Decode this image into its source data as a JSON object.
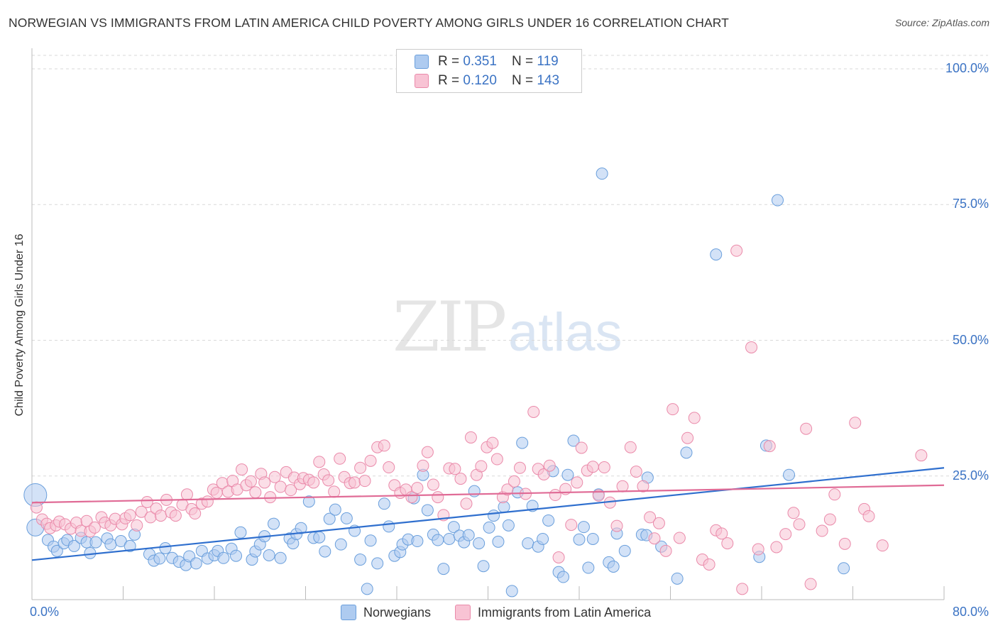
{
  "header": {
    "title": "NORWEGIAN VS IMMIGRANTS FROM LATIN AMERICA CHILD POVERTY AMONG GIRLS UNDER 16 CORRELATION CHART",
    "source": "Source: ZipAtlas.com"
  },
  "watermark": {
    "zip": "ZIP",
    "atlas": "atlas"
  },
  "legend_top": {
    "rows": [
      {
        "r_label": "R = ",
        "r_value": "0.351",
        "n_label": "N = ",
        "n_value": "119"
      },
      {
        "r_label": "R = ",
        "r_value": "0.120",
        "n_label": "N = ",
        "n_value": "143"
      }
    ]
  },
  "legend_bottom": {
    "items": [
      "Norwegians",
      "Immigrants from Latin America"
    ]
  },
  "colors": {
    "blue_fill": "#aecbf0",
    "blue_stroke": "#6a9fdc",
    "blue_line": "#2f6fce",
    "pink_fill": "#f8c3d4",
    "pink_stroke": "#ea8aaa",
    "pink_line": "#e06b96",
    "tick_color": "#3b73c4",
    "grid": "#d9d9d9"
  },
  "chart_data": {
    "type": "scatter",
    "title": "NORWEGIAN VS IMMIGRANTS FROM LATIN AMERICA CHILD POVERTY AMONG GIRLS UNDER 16 CORRELATION CHART",
    "xlabel": "",
    "ylabel": "Child Poverty Among Girls Under 16",
    "xlim": [
      0,
      80
    ],
    "ylim": [
      0,
      100
    ],
    "x_tick_labels": [
      "0.0%",
      "80.0%"
    ],
    "y_ticks": [
      25,
      50,
      75,
      100
    ],
    "y_tick_labels": [
      "25.0%",
      "50.0%",
      "75.0%",
      "100.0%"
    ],
    "grid": "horizontal dashed",
    "legend_position": "top-center",
    "series": [
      {
        "name": "Norwegians",
        "R": 0.351,
        "N": 119,
        "trend": [
          [
            0,
            9.5
          ],
          [
            80,
            26.5
          ]
        ],
        "points": [
          [
            0.3,
            21.5
          ],
          [
            0.3,
            15.5
          ],
          [
            1.4,
            13.2
          ],
          [
            1.9,
            12.0
          ],
          [
            2.2,
            11.2
          ],
          [
            2.8,
            12.6
          ],
          [
            3.1,
            13.2
          ],
          [
            3.7,
            12.1
          ],
          [
            4.3,
            13.6
          ],
          [
            4.8,
            12.8
          ],
          [
            5.1,
            10.8
          ],
          [
            5.6,
            12.8
          ],
          [
            6.6,
            13.5
          ],
          [
            6.9,
            12.4
          ],
          [
            7.8,
            13.0
          ],
          [
            8.6,
            12.1
          ],
          [
            9.0,
            14.2
          ],
          [
            10.3,
            10.6
          ],
          [
            10.7,
            9.4
          ],
          [
            11.2,
            9.8
          ],
          [
            11.7,
            11.7
          ],
          [
            12.3,
            9.9
          ],
          [
            12.9,
            9.2
          ],
          [
            13.5,
            8.6
          ],
          [
            13.8,
            10.2
          ],
          [
            14.4,
            8.9
          ],
          [
            14.9,
            11.2
          ],
          [
            15.4,
            9.8
          ],
          [
            16.0,
            10.4
          ],
          [
            16.3,
            11.2
          ],
          [
            16.8,
            9.9
          ],
          [
            17.5,
            11.6
          ],
          [
            17.9,
            10.3
          ],
          [
            18.3,
            14.6
          ],
          [
            19.3,
            9.6
          ],
          [
            19.6,
            11.1
          ],
          [
            20.0,
            12.4
          ],
          [
            20.4,
            13.9
          ],
          [
            20.8,
            10.4
          ],
          [
            21.2,
            16.2
          ],
          [
            21.8,
            9.9
          ],
          [
            22.6,
            13.5
          ],
          [
            22.9,
            12.6
          ],
          [
            23.2,
            14.3
          ],
          [
            23.6,
            15.4
          ],
          [
            24.3,
            20.3
          ],
          [
            24.7,
            13.6
          ],
          [
            25.2,
            13.7
          ],
          [
            25.7,
            11.1
          ],
          [
            26.1,
            17.1
          ],
          [
            26.6,
            18.8
          ],
          [
            27.1,
            12.4
          ],
          [
            27.6,
            17.2
          ],
          [
            28.3,
            14.9
          ],
          [
            28.8,
            9.6
          ],
          [
            29.4,
            4.2
          ],
          [
            29.7,
            13.1
          ],
          [
            30.3,
            8.9
          ],
          [
            30.9,
            19.9
          ],
          [
            31.3,
            15.7
          ],
          [
            31.8,
            10.3
          ],
          [
            32.3,
            11.0
          ],
          [
            32.5,
            12.4
          ],
          [
            33.0,
            13.3
          ],
          [
            33.5,
            20.9
          ],
          [
            33.8,
            13.0
          ],
          [
            34.3,
            25.2
          ],
          [
            34.7,
            18.7
          ],
          [
            35.2,
            14.2
          ],
          [
            35.6,
            13.2
          ],
          [
            36.1,
            7.9
          ],
          [
            36.6,
            13.4
          ],
          [
            37.0,
            15.6
          ],
          [
            37.5,
            14.0
          ],
          [
            37.9,
            12.8
          ],
          [
            38.3,
            14.1
          ],
          [
            38.8,
            22.2
          ],
          [
            39.2,
            12.6
          ],
          [
            39.6,
            8.4
          ],
          [
            40.1,
            15.5
          ],
          [
            40.5,
            17.7
          ],
          [
            40.9,
            12.9
          ],
          [
            41.4,
            19.3
          ],
          [
            41.8,
            15.9
          ],
          [
            42.1,
            3.8
          ],
          [
            42.6,
            22.0
          ],
          [
            43.0,
            31.1
          ],
          [
            43.5,
            12.6
          ],
          [
            43.9,
            19.5
          ],
          [
            44.4,
            12.0
          ],
          [
            44.8,
            13.4
          ],
          [
            45.3,
            16.8
          ],
          [
            45.7,
            25.9
          ],
          [
            46.2,
            7.3
          ],
          [
            46.6,
            6.4
          ],
          [
            47.0,
            25.2
          ],
          [
            47.5,
            31.5
          ],
          [
            48.0,
            13.3
          ],
          [
            48.4,
            15.6
          ],
          [
            48.8,
            8.1
          ],
          [
            49.2,
            13.4
          ],
          [
            49.7,
            21.6
          ],
          [
            50.0,
            80.7
          ],
          [
            50.6,
            9.1
          ],
          [
            51.0,
            8.3
          ],
          [
            51.3,
            14.4
          ],
          [
            52.0,
            11.2
          ],
          [
            53.5,
            14.2
          ],
          [
            54.0,
            24.7
          ],
          [
            56.6,
            6.1
          ],
          [
            57.4,
            29.3
          ],
          [
            60.0,
            65.8
          ],
          [
            63.8,
            10.1
          ],
          [
            64.4,
            30.6
          ],
          [
            65.4,
            75.8
          ],
          [
            66.4,
            25.2
          ],
          [
            71.2,
            8.0
          ],
          [
            53.9,
            14.1
          ],
          [
            55.2,
            12.0
          ]
        ]
      },
      {
        "name": "Immigrants from Latin America",
        "R": 0.12,
        "N": 143,
        "trend": [
          [
            0,
            20.1
          ],
          [
            80,
            23.3
          ]
        ],
        "points": [
          [
            0.4,
            19.2
          ],
          [
            0.9,
            17.0
          ],
          [
            1.3,
            16.2
          ],
          [
            1.6,
            15.4
          ],
          [
            2.1,
            15.9
          ],
          [
            2.4,
            16.6
          ],
          [
            2.9,
            16.1
          ],
          [
            3.4,
            15.3
          ],
          [
            3.9,
            16.4
          ],
          [
            4.3,
            14.9
          ],
          [
            4.8,
            16.7
          ],
          [
            5.1,
            14.8
          ],
          [
            5.5,
            15.5
          ],
          [
            6.1,
            17.4
          ],
          [
            6.4,
            16.4
          ],
          [
            6.9,
            15.9
          ],
          [
            7.3,
            17.1
          ],
          [
            7.9,
            16.1
          ],
          [
            8.2,
            17.2
          ],
          [
            8.6,
            17.8
          ],
          [
            9.2,
            15.9
          ],
          [
            9.6,
            18.4
          ],
          [
            10.1,
            20.2
          ],
          [
            10.4,
            17.4
          ],
          [
            10.9,
            19.0
          ],
          [
            11.3,
            17.7
          ],
          [
            11.8,
            20.6
          ],
          [
            12.2,
            18.3
          ],
          [
            12.6,
            17.7
          ],
          [
            13.2,
            19.7
          ],
          [
            13.6,
            21.6
          ],
          [
            14.0,
            18.9
          ],
          [
            14.3,
            18.1
          ],
          [
            14.9,
            19.9
          ],
          [
            15.4,
            20.3
          ],
          [
            15.9,
            22.5
          ],
          [
            16.2,
            21.9
          ],
          [
            16.7,
            23.7
          ],
          [
            17.2,
            22.1
          ],
          [
            17.6,
            24.1
          ],
          [
            18.0,
            22.5
          ],
          [
            18.4,
            26.2
          ],
          [
            18.8,
            23.3
          ],
          [
            19.2,
            24.0
          ],
          [
            19.6,
            22.0
          ],
          [
            20.1,
            25.4
          ],
          [
            20.4,
            23.8
          ],
          [
            20.9,
            21.1
          ],
          [
            21.3,
            24.8
          ],
          [
            21.8,
            23.0
          ],
          [
            22.3,
            25.7
          ],
          [
            22.7,
            22.4
          ],
          [
            23.0,
            24.7
          ],
          [
            23.5,
            23.5
          ],
          [
            23.8,
            24.6
          ],
          [
            24.3,
            24.3
          ],
          [
            24.7,
            23.8
          ],
          [
            25.2,
            27.6
          ],
          [
            25.6,
            25.3
          ],
          [
            26.0,
            24.2
          ],
          [
            26.5,
            22.1
          ],
          [
            27.0,
            28.2
          ],
          [
            27.4,
            24.8
          ],
          [
            27.9,
            23.7
          ],
          [
            28.3,
            23.8
          ],
          [
            28.8,
            26.5
          ],
          [
            29.2,
            24.1
          ],
          [
            29.7,
            27.8
          ],
          [
            30.3,
            30.3
          ],
          [
            30.9,
            30.6
          ],
          [
            31.3,
            26.6
          ],
          [
            31.8,
            23.3
          ],
          [
            32.3,
            21.9
          ],
          [
            32.8,
            22.5
          ],
          [
            33.3,
            21.1
          ],
          [
            33.8,
            22.8
          ],
          [
            34.3,
            26.9
          ],
          [
            34.7,
            29.4
          ],
          [
            35.2,
            23.4
          ],
          [
            35.6,
            21.1
          ],
          [
            36.1,
            17.8
          ],
          [
            36.6,
            26.4
          ],
          [
            37.1,
            26.3
          ],
          [
            37.6,
            24.5
          ],
          [
            38.1,
            19.9
          ],
          [
            38.5,
            32.1
          ],
          [
            39.0,
            25.2
          ],
          [
            39.4,
            26.8
          ],
          [
            39.9,
            30.3
          ],
          [
            40.4,
            31.1
          ],
          [
            40.8,
            28.1
          ],
          [
            41.3,
            21.1
          ],
          [
            41.7,
            22.5
          ],
          [
            42.3,
            24.0
          ],
          [
            42.8,
            26.5
          ],
          [
            43.3,
            21.7
          ],
          [
            44.0,
            36.8
          ],
          [
            44.4,
            26.3
          ],
          [
            44.9,
            25.3
          ],
          [
            45.4,
            26.9
          ],
          [
            45.9,
            21.5
          ],
          [
            46.2,
            10.0
          ],
          [
            46.8,
            22.6
          ],
          [
            47.3,
            16.0
          ],
          [
            47.8,
            23.8
          ],
          [
            48.2,
            30.2
          ],
          [
            48.7,
            26.0
          ],
          [
            49.2,
            26.7
          ],
          [
            49.7,
            21.4
          ],
          [
            50.2,
            26.6
          ],
          [
            50.7,
            20.1
          ],
          [
            51.3,
            15.8
          ],
          [
            51.8,
            23.1
          ],
          [
            52.5,
            30.3
          ],
          [
            53.0,
            25.8
          ],
          [
            53.6,
            23.1
          ],
          [
            54.2,
            17.4
          ],
          [
            54.6,
            13.5
          ],
          [
            55.0,
            16.3
          ],
          [
            55.6,
            11.2
          ],
          [
            56.2,
            37.3
          ],
          [
            56.8,
            13.6
          ],
          [
            57.5,
            32.0
          ],
          [
            58.1,
            35.7
          ],
          [
            58.8,
            9.6
          ],
          [
            59.4,
            8.7
          ],
          [
            60.0,
            15.0
          ],
          [
            60.5,
            14.4
          ],
          [
            61.0,
            12.6
          ],
          [
            61.8,
            66.5
          ],
          [
            62.3,
            4.2
          ],
          [
            63.1,
            48.7
          ],
          [
            63.7,
            11.5
          ],
          [
            64.7,
            30.5
          ],
          [
            65.3,
            11.9
          ],
          [
            66.1,
            14.3
          ],
          [
            67.3,
            16.1
          ],
          [
            67.9,
            33.7
          ],
          [
            68.3,
            5.1
          ],
          [
            69.3,
            14.9
          ],
          [
            70.4,
            21.6
          ],
          [
            71.3,
            12.5
          ],
          [
            73.0,
            18.9
          ],
          [
            74.6,
            12.2
          ],
          [
            78.0,
            28.8
          ],
          [
            72.2,
            34.8
          ],
          [
            73.4,
            17.6
          ],
          [
            70.0,
            17.0
          ],
          [
            66.8,
            18.2
          ]
        ]
      }
    ]
  }
}
